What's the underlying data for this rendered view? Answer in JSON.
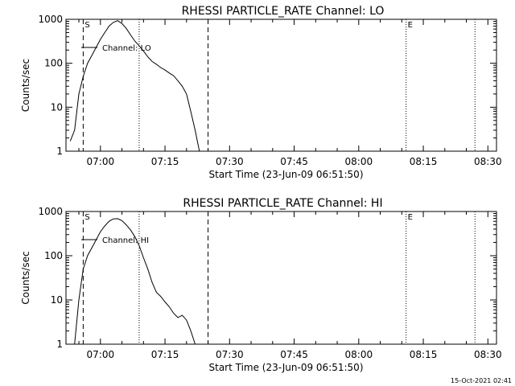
{
  "footer": {
    "timestamp": "15-Oct-2021 02:41"
  },
  "chart_data": [
    {
      "type": "line",
      "title": "RHESSI PARTICLE_RATE Channel: LO",
      "xlabel": "Start Time (23-Jun-09 06:51:50)",
      "ylabel": "Counts/sec",
      "xlim": [
        "06:52",
        "08:32"
      ],
      "ylim": [
        1,
        1000
      ],
      "yscale": "log",
      "x_ticks": [
        "07:00",
        "07:15",
        "07:30",
        "07:45",
        "08:00",
        "08:15",
        "08:30"
      ],
      "y_ticks": [
        "1",
        "10",
        "100",
        "1000"
      ],
      "legend": {
        "label": "Channel: LO",
        "placement": "top-left"
      },
      "markers": [
        {
          "time": "06:56",
          "style": "dashed",
          "label": "S"
        },
        {
          "time": "07:09",
          "style": "dotted",
          "label": ""
        },
        {
          "time": "07:25",
          "style": "dashed",
          "label": ""
        },
        {
          "time": "08:11",
          "style": "dotted",
          "label": "E"
        },
        {
          "time": "08:27",
          "style": "dotted",
          "label": ""
        }
      ],
      "series": [
        {
          "name": "Channel: LO",
          "x": [
            "06:53",
            "06:54",
            "06:55",
            "06:56",
            "06:57",
            "06:58",
            "06:59",
            "07:00",
            "07:01",
            "07:02",
            "07:03",
            "07:04",
            "07:05",
            "07:06",
            "07:07",
            "07:08",
            "07:09",
            "07:10",
            "07:11",
            "07:12",
            "07:13",
            "07:14",
            "07:15",
            "07:16",
            "07:17",
            "07:18",
            "07:19",
            "07:20",
            "07:21",
            "07:22",
            "07:23"
          ],
          "y": [
            1.7,
            3,
            20,
            50,
            100,
            150,
            230,
            350,
            500,
            700,
            850,
            930,
            800,
            620,
            440,
            320,
            250,
            190,
            140,
            110,
            95,
            80,
            70,
            60,
            52,
            40,
            30,
            20,
            8,
            3,
            1
          ]
        }
      ]
    },
    {
      "type": "line",
      "title": "RHESSI PARTICLE_RATE Channel: HI",
      "xlabel": "Start Time (23-Jun-09 06:51:50)",
      "ylabel": "Counts/sec",
      "xlim": [
        "06:52",
        "08:32"
      ],
      "ylim": [
        1,
        1000
      ],
      "yscale": "log",
      "x_ticks": [
        "07:00",
        "07:15",
        "07:30",
        "07:45",
        "08:00",
        "08:15",
        "08:30"
      ],
      "y_ticks": [
        "1",
        "10",
        "100",
        "1000"
      ],
      "legend": {
        "label": "Channel: HI",
        "placement": "top-left"
      },
      "markers": [
        {
          "time": "06:56",
          "style": "dashed",
          "label": "S"
        },
        {
          "time": "07:09",
          "style": "dotted",
          "label": ""
        },
        {
          "time": "07:25",
          "style": "dashed",
          "label": ""
        },
        {
          "time": "08:11",
          "style": "dotted",
          "label": "E"
        },
        {
          "time": "08:27",
          "style": "dotted",
          "label": ""
        }
      ],
      "series": [
        {
          "name": "Channel: HI",
          "x": [
            "06:54",
            "06:55",
            "06:56",
            "06:57",
            "06:58",
            "06:59",
            "07:00",
            "07:01",
            "07:02",
            "07:03",
            "07:04",
            "07:05",
            "07:06",
            "07:07",
            "07:08",
            "07:09",
            "07:10",
            "07:11",
            "07:12",
            "07:13",
            "07:14",
            "07:15",
            "07:16",
            "07:17",
            "07:18",
            "07:19",
            "07:20",
            "07:21",
            "07:22"
          ],
          "y": [
            1,
            10,
            50,
            100,
            150,
            230,
            350,
            470,
            600,
            680,
            690,
            620,
            500,
            380,
            270,
            170,
            90,
            50,
            25,
            15,
            12,
            9,
            7,
            5,
            4,
            4.5,
            3.5,
            2,
            1
          ]
        }
      ]
    }
  ]
}
